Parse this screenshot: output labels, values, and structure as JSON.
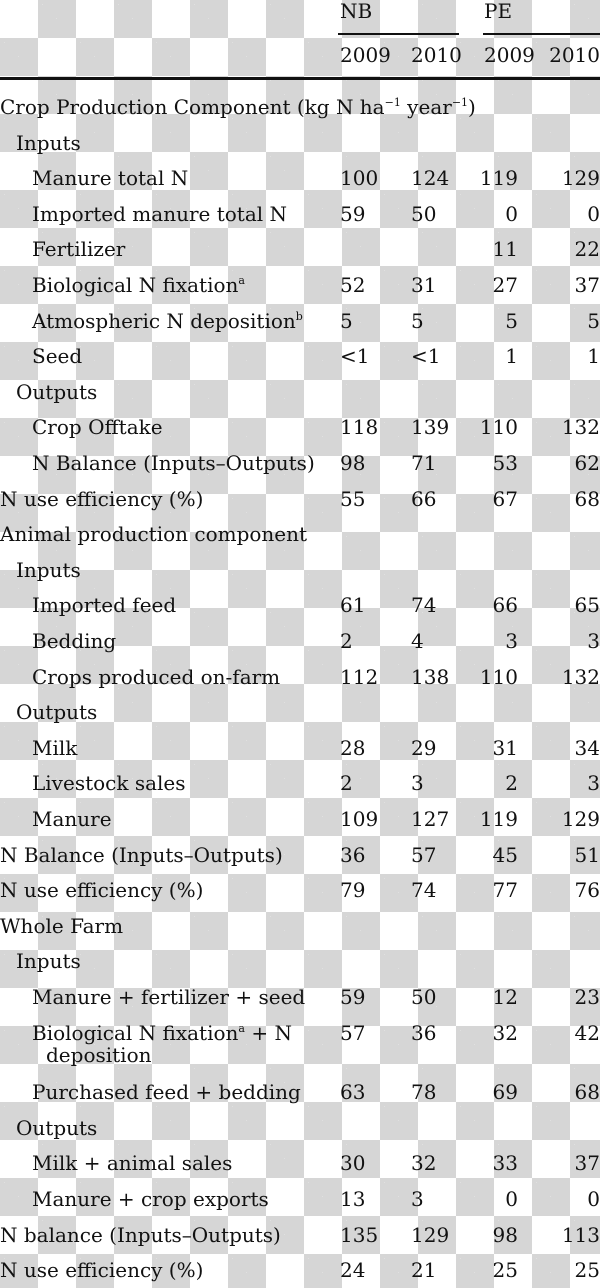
{
  "header": {
    "groups": [
      "NB",
      "PE"
    ],
    "years": [
      "2009",
      "2010",
      "2009",
      "2010"
    ]
  },
  "rows": [
    {
      "label": "Crop Production Component (kg N ha",
      "sup1": "−1",
      "mid": " year",
      "sup2": "−1",
      "end": ")",
      "level": 0,
      "kind": "section"
    },
    {
      "label": "Inputs",
      "level": 1
    },
    {
      "label": "Manure total N",
      "level": 2,
      "values": [
        "100",
        "124",
        "119",
        "129"
      ]
    },
    {
      "label": "Imported manure total N",
      "level": 2,
      "values": [
        "59",
        "50",
        "0",
        "0"
      ]
    },
    {
      "label": "Fertilizer",
      "level": 2,
      "values": [
        "",
        "",
        "11",
        "22"
      ]
    },
    {
      "label": "Biological N fixation",
      "sup": "a",
      "level": 2,
      "values": [
        "52",
        "31",
        "27",
        "37"
      ]
    },
    {
      "label": "Atmospheric N deposition",
      "sup": "b",
      "level": 2,
      "values": [
        "5",
        "5",
        "5",
        "5"
      ]
    },
    {
      "label": "Seed",
      "level": 2,
      "values": [
        "<1",
        "<1",
        "1",
        "1"
      ]
    },
    {
      "label": "Outputs",
      "level": 1
    },
    {
      "label": "Crop Offtake",
      "level": 2,
      "values": [
        "118",
        "139",
        "110",
        "132"
      ]
    },
    {
      "label": "N Balance (Inputs–Outputs)",
      "level": 2,
      "values": [
        "98",
        "71",
        "53",
        "62"
      ]
    },
    {
      "label": "N use efficiency (%)",
      "level": 0,
      "values": [
        "55",
        "66",
        "67",
        "68"
      ]
    },
    {
      "label": "Animal production component",
      "level": 0
    },
    {
      "label": "Inputs",
      "level": 1
    },
    {
      "label": "Imported feed",
      "level": 2,
      "values": [
        "61",
        "74",
        "66",
        "65"
      ]
    },
    {
      "label": "Bedding",
      "level": 2,
      "values": [
        "2",
        "4",
        "3",
        "3"
      ]
    },
    {
      "label": "Crops produced on-farm",
      "level": 2,
      "values": [
        "112",
        "138",
        "110",
        "132"
      ]
    },
    {
      "label": "Outputs",
      "level": 1
    },
    {
      "label": "Milk",
      "level": 2,
      "values": [
        "28",
        "29",
        "31",
        "34"
      ]
    },
    {
      "label": "Livestock sales",
      "level": 2,
      "values": [
        "2",
        "3",
        "2",
        "3"
      ]
    },
    {
      "label": "Manure",
      "level": 2,
      "values": [
        "109",
        "127",
        "119",
        "129"
      ]
    },
    {
      "label": "N Balance (Inputs–Outputs)",
      "level": 0,
      "values": [
        "36",
        "57",
        "45",
        "51"
      ]
    },
    {
      "label": "N use efficiency (%)",
      "level": 0,
      "values": [
        "79",
        "74",
        "77",
        "76"
      ]
    },
    {
      "label": "Whole Farm",
      "level": 0
    },
    {
      "label": "Inputs",
      "level": 1
    },
    {
      "label": "Manure + fertilizer + seed",
      "level": 2,
      "values": [
        "59",
        "50",
        "12",
        "23"
      ]
    },
    {
      "label": "Biological N fixation",
      "sup": "a",
      "after": " + N",
      "line2": "deposition",
      "level": 2,
      "values": [
        "57",
        "36",
        "32",
        "42"
      ]
    },
    {
      "label": "Purchased feed + bedding",
      "level": 2,
      "values": [
        "63",
        "78",
        "69",
        "68"
      ]
    },
    {
      "label": "Outputs",
      "level": 1
    },
    {
      "label": "Milk + animal sales",
      "level": 2,
      "values": [
        "30",
        "32",
        "33",
        "37"
      ]
    },
    {
      "label": "Manure + crop exports",
      "level": 2,
      "values": [
        "13",
        "3",
        "0",
        "0"
      ]
    },
    {
      "label": "N balance (Inputs–Outputs)",
      "level": 0,
      "values": [
        "135",
        "129",
        "98",
        "113"
      ]
    },
    {
      "label": "N use efficiency (%)",
      "level": 0,
      "values": [
        "24",
        "21",
        "25",
        "25"
      ]
    }
  ]
}
